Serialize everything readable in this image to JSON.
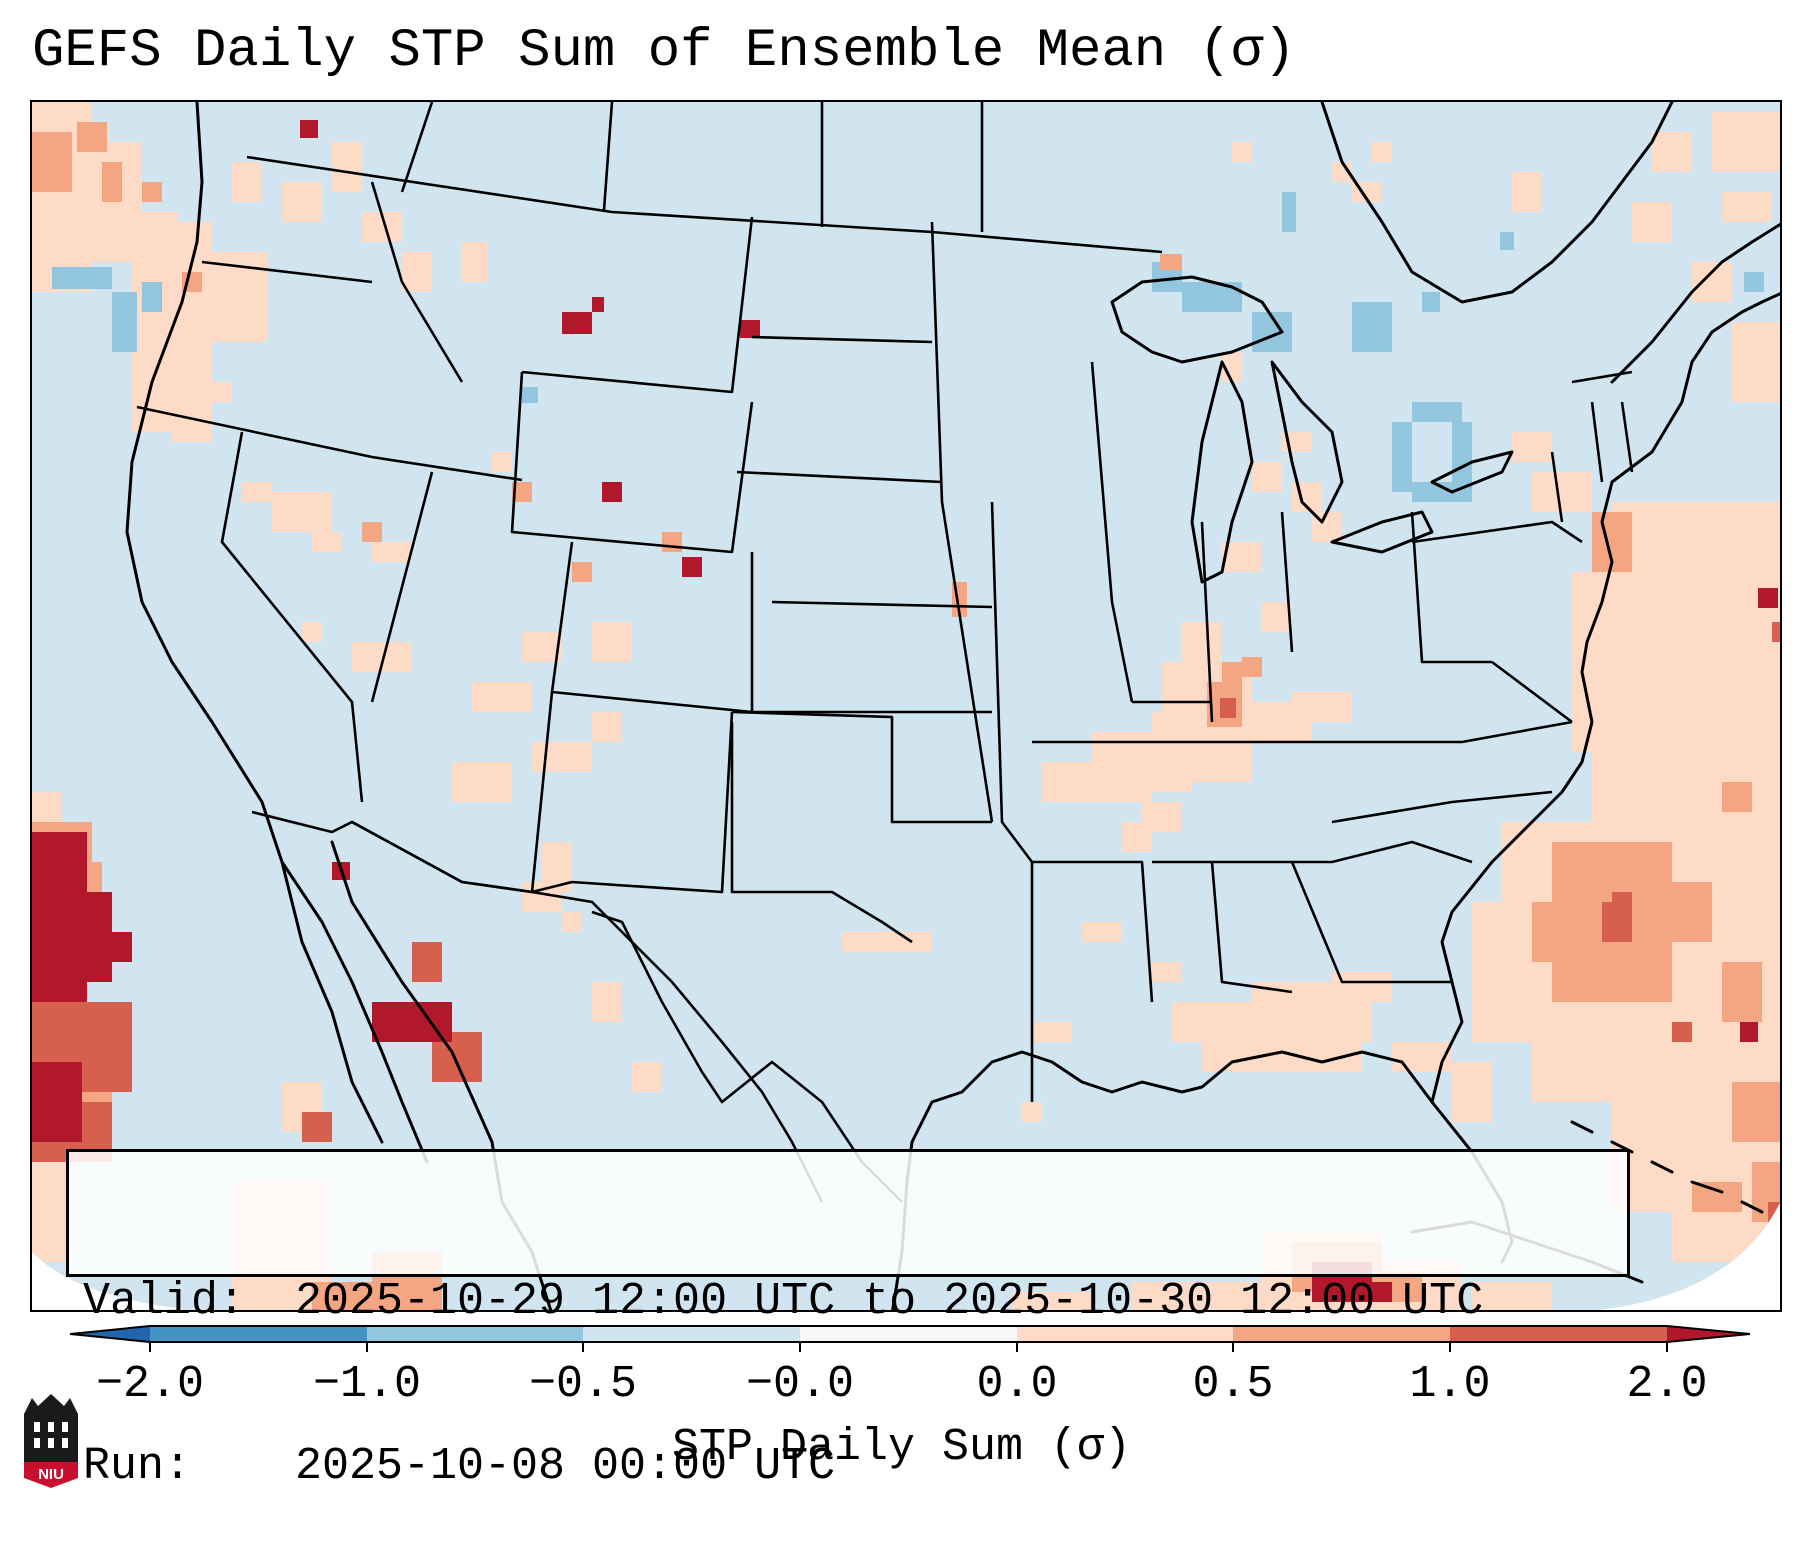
{
  "title": "GEFS Daily STP Sum of Ensemble Mean (σ)",
  "info": {
    "valid_label": "Valid:",
    "valid_value": "2025-10-29 12:00 UTC to 2025-10-30 12:00 UTC",
    "run_label": "Run:",
    "run_value": "2025-10-08 00:00 UTC"
  },
  "colorbar": {
    "title": "STP Daily Sum (σ)",
    "tick_labels": [
      "−2.0",
      "−1.0",
      "−0.5",
      "−0.0",
      "0.0",
      "0.5",
      "1.0",
      "2.0"
    ],
    "colors": [
      "#2166ac",
      "#4393c3",
      "#92c5de",
      "#d1e5f0",
      "#f7f7f7",
      "#fddbc7",
      "#f4a582",
      "#d6604d",
      "#b2182b"
    ]
  },
  "logo": {
    "text": "NIU"
  },
  "map": {
    "background_color": "#d1e5f0",
    "anomaly_regions": [
      "Pacific Northwest coast",
      "Off Baja California",
      "Tennessee Valley",
      "Gulf Coast",
      "Western Atlantic",
      "Caribbean"
    ]
  }
}
